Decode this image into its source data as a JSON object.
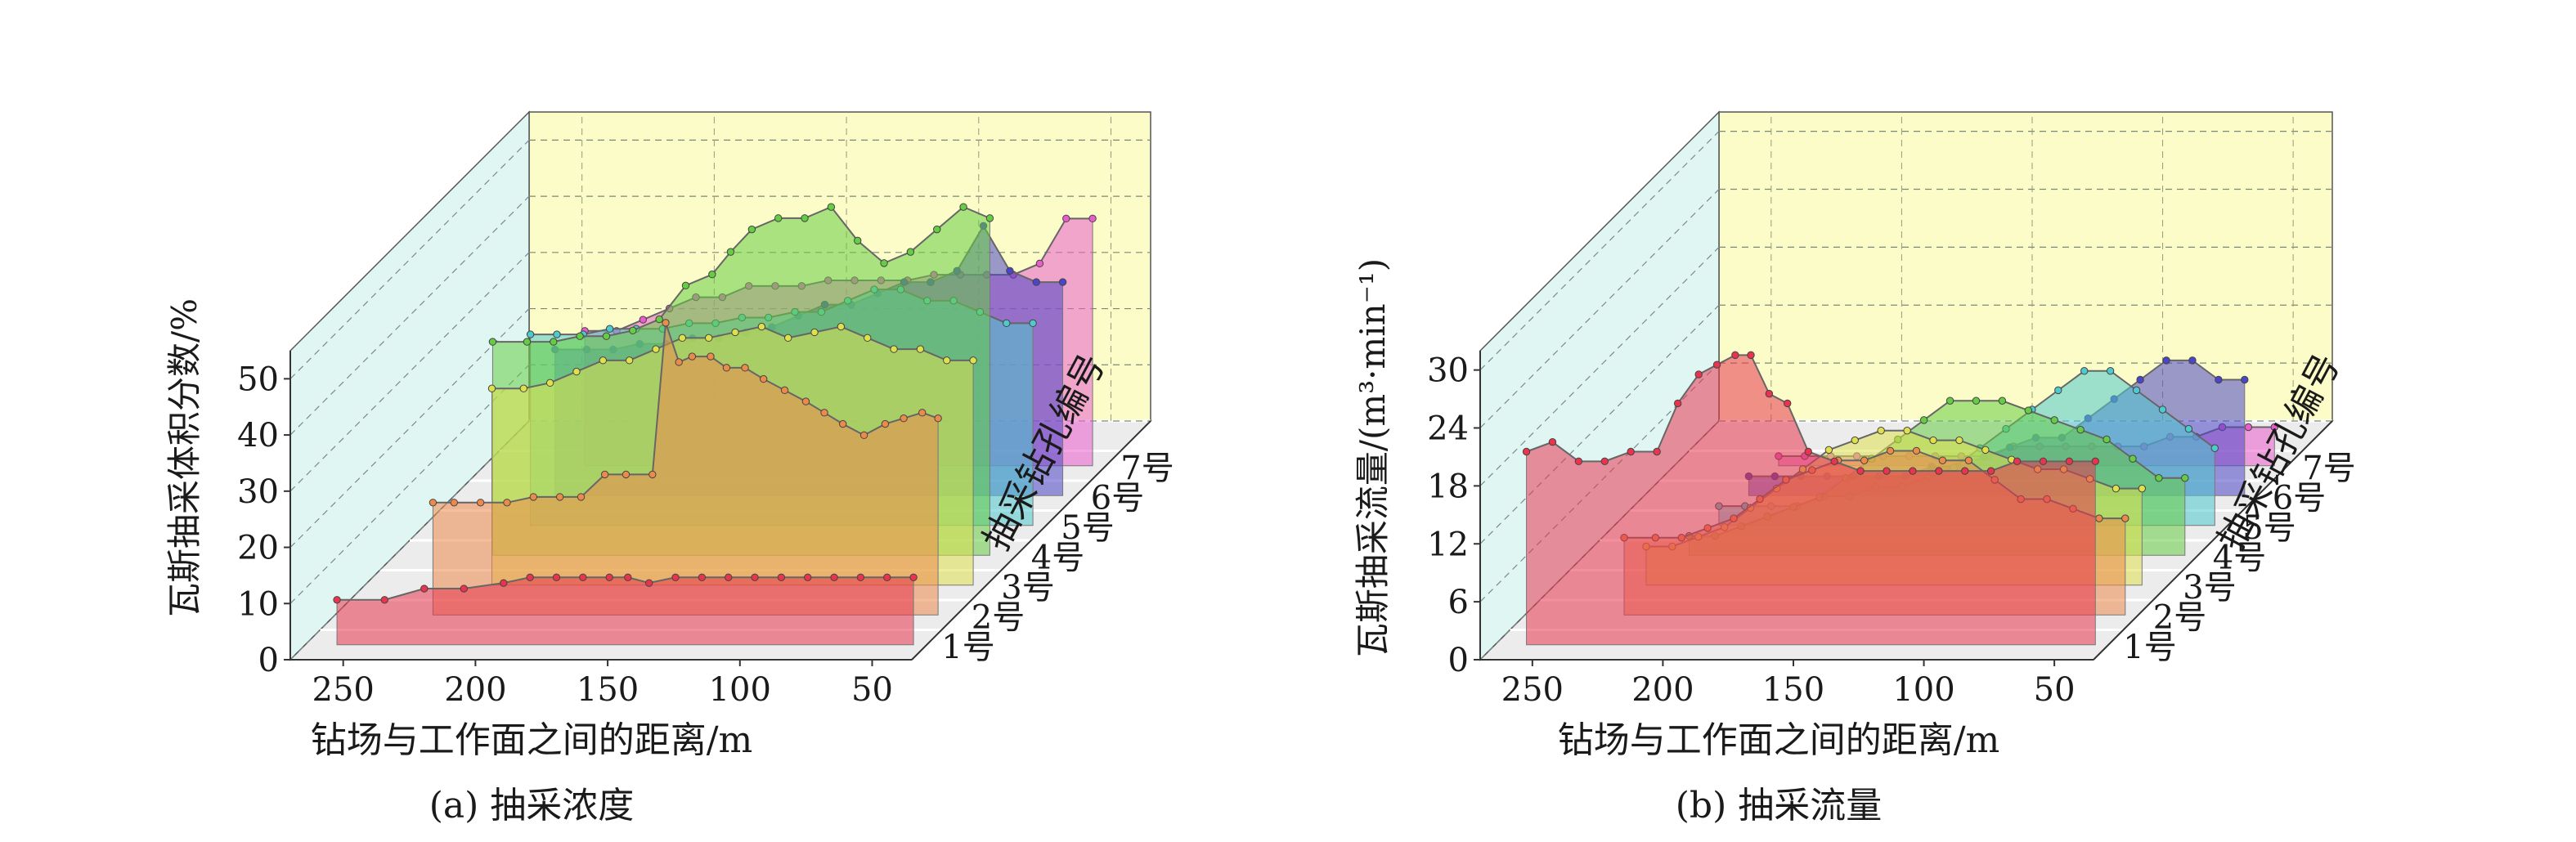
{
  "figure": {
    "panels": [
      "(a) 抽采浓度",
      "(b) 抽采流量"
    ]
  },
  "chart_data": [
    {
      "type": "area",
      "caption": "(a) 抽采浓度",
      "xlabel": "钻场与工作面之间的距离/m",
      "ylabel": "瓦斯抽采体积分数/%",
      "zlabel": "抽采钻孔编号",
      "x_ticks": [
        "250",
        "200",
        "150",
        "100",
        "50"
      ],
      "y_ticks": [
        "0",
        "10",
        "20",
        "30",
        "40",
        "50"
      ],
      "series_labels": [
        "1号",
        "2号",
        "3号",
        "4号",
        "5号",
        "6号",
        "7号"
      ],
      "xlim": [
        270,
        35
      ],
      "ylim": [
        0,
        55
      ],
      "series": [
        {
          "name": "1号",
          "color": "#e8344e",
          "x": [
            258,
            240,
            225,
            210,
            195,
            185,
            175,
            165,
            155,
            148,
            140,
            130,
            120,
            110,
            100,
            90,
            80,
            70,
            60,
            50,
            40
          ],
          "values": [
            8,
            8,
            10,
            10,
            11,
            12,
            12,
            12,
            12,
            12,
            11,
            12,
            12,
            12,
            12,
            12,
            12,
            12,
            12,
            12,
            12
          ]
        },
        {
          "name": "2号",
          "color": "#ec8a4c",
          "x": [
            233,
            225,
            215,
            205,
            195,
            185,
            177,
            168,
            160,
            150,
            145,
            140,
            135,
            128,
            122,
            115,
            108,
            100,
            92,
            85,
            78,
            70,
            62,
            55,
            48,
            42
          ],
          "values": [
            20,
            20,
            20,
            20,
            21,
            21,
            21,
            25,
            25,
            25,
            52,
            45,
            46,
            46,
            44,
            44,
            42,
            40,
            38,
            36,
            34,
            32,
            34,
            35,
            36,
            35
          ]
        },
        {
          "name": "3号",
          "color": "#dfe04e",
          "x": [
            222,
            210,
            200,
            190,
            180,
            170,
            160,
            150,
            140,
            130,
            120,
            110,
            100,
            90,
            80,
            70,
            60,
            50,
            40
          ],
          "values": [
            35,
            35,
            36,
            38,
            40,
            40,
            42,
            44,
            44,
            45,
            46,
            44,
            45,
            46,
            44,
            42,
            42,
            40,
            40
          ]
        },
        {
          "name": "4号",
          "color": "#66cc44",
          "x": [
            233,
            220,
            210,
            200,
            190,
            180,
            170,
            160,
            150,
            143,
            135,
            125,
            115,
            105,
            95,
            85,
            75,
            65,
            55,
            45
          ],
          "values": [
            38,
            38,
            38,
            39,
            39,
            40,
            42,
            48,
            50,
            54,
            58,
            60,
            60,
            62,
            56,
            52,
            54,
            58,
            62,
            60
          ]
        },
        {
          "name": "5号",
          "color": "#4ec9cd",
          "x": [
            230,
            220,
            210,
            200,
            190,
            180,
            170,
            160,
            150,
            140,
            130,
            120,
            110,
            100,
            90,
            80,
            70,
            60,
            50,
            40
          ],
          "values": [
            34,
            34,
            34,
            35,
            35,
            35,
            36,
            36,
            37,
            37,
            38,
            38,
            40,
            42,
            42,
            40,
            40,
            38,
            36,
            36
          ]
        },
        {
          "name": "6号",
          "color": "#4a46c6",
          "x": [
            232,
            220,
            210,
            200,
            190,
            180,
            170,
            160,
            150,
            140,
            130,
            120,
            110,
            100,
            90,
            80,
            70,
            60,
            50,
            40
          ],
          "values": [
            26,
            26,
            26,
            27,
            27,
            28,
            28,
            29,
            30,
            32,
            34,
            34,
            36,
            38,
            38,
            40,
            48,
            40,
            38,
            38
          ]
        },
        {
          "name": "7号",
          "color": "#ea5ccc",
          "x": [
            232,
            220,
            210,
            200,
            190,
            180,
            170,
            160,
            150,
            140,
            130,
            120,
            110,
            100,
            90,
            80,
            70,
            60,
            50,
            40
          ],
          "values": [
            24,
            24,
            26,
            28,
            30,
            30,
            32,
            32,
            32,
            33,
            33,
            33,
            33,
            34,
            34,
            34,
            34,
            36,
            44,
            44
          ]
        }
      ]
    },
    {
      "type": "area",
      "caption": "(b) 抽采流量",
      "xlabel": "钻场与工作面之间的距离/m",
      "ylabel": "瓦斯抽采流量/(m³·min⁻¹)",
      "zlabel": "抽采钻孔编号",
      "x_ticks": [
        "250",
        "200",
        "150",
        "100",
        "50"
      ],
      "y_ticks": [
        "0",
        "6",
        "12",
        "18",
        "24",
        "30"
      ],
      "series_labels": [
        "1号",
        "2号",
        "3号",
        "4号",
        "5号",
        "6号",
        "7号"
      ],
      "xlim": [
        270,
        35
      ],
      "ylim": [
        0,
        32
      ],
      "series": [
        {
          "name": "1号",
          "color": "#e8344e",
          "x": [
            258,
            248,
            238,
            228,
            218,
            208,
            200,
            192,
            185,
            178,
            172,
            165,
            158,
            150,
            140,
            130,
            120,
            110,
            100,
            90,
            80,
            70,
            60,
            50,
            40
          ],
          "values": [
            20,
            21,
            19,
            19,
            20,
            20,
            25,
            28,
            29,
            30,
            30,
            26,
            25,
            20,
            19,
            18,
            18,
            18,
            18,
            18,
            18,
            19,
            19,
            19,
            19
          ]
        },
        {
          "name": "2号",
          "color": "#ec8a4c",
          "x": [
            232,
            220,
            210,
            200,
            190,
            180,
            170,
            160,
            150,
            140,
            130,
            120,
            110,
            100,
            90,
            80,
            70,
            60,
            50,
            40
          ],
          "values": [
            8,
            8,
            8,
            9,
            10,
            12,
            14,
            15,
            16,
            16,
            17,
            17,
            16,
            16,
            14,
            12,
            12,
            11,
            10,
            10
          ]
        },
        {
          "name": "3号",
          "color": "#dfe04e",
          "x": [
            235,
            225,
            215,
            205,
            195,
            185,
            175,
            165,
            155,
            145,
            135,
            125,
            115,
            105,
            95,
            85,
            75,
            65,
            55,
            45
          ],
          "values": [
            4,
            4,
            5,
            6,
            8,
            10,
            12,
            14,
            15,
            16,
            16,
            15,
            15,
            14,
            13,
            12,
            12,
            11,
            10,
            10
          ]
        },
        {
          "name": "4号",
          "color": "#66cc44",
          "x": [
            230,
            220,
            210,
            200,
            190,
            180,
            170,
            160,
            150,
            140,
            130,
            120,
            110,
            100,
            90,
            80,
            70,
            60,
            50,
            40
          ],
          "values": [
            2,
            2,
            3,
            4,
            5,
            6,
            8,
            10,
            12,
            14,
            16,
            16,
            16,
            15,
            14,
            13,
            12,
            10,
            8,
            8
          ]
        },
        {
          "name": "5号",
          "color": "#4ec9cd",
          "x": [
            230,
            220,
            210,
            200,
            190,
            180,
            170,
            160,
            150,
            140,
            130,
            120,
            110,
            100,
            90,
            80,
            70,
            60,
            50,
            40
          ],
          "values": [
            2,
            2,
            2,
            2,
            3,
            3,
            4,
            4,
            5,
            6,
            8,
            10,
            12,
            14,
            16,
            16,
            14,
            12,
            10,
            8
          ]
        },
        {
          "name": "6号",
          "color": "#4a46c6",
          "x": [
            230,
            220,
            210,
            200,
            190,
            180,
            170,
            160,
            150,
            140,
            130,
            120,
            110,
            100,
            90,
            80,
            70,
            60,
            50,
            40
          ],
          "values": [
            2,
            2,
            2,
            2,
            2,
            2,
            2,
            3,
            3,
            4,
            5,
            6,
            6,
            8,
            10,
            12,
            14,
            14,
            12,
            12
          ]
        },
        {
          "name": "7号",
          "color": "#ea5ccc",
          "x": [
            230,
            220,
            210,
            200,
            190,
            180,
            170,
            160,
            150,
            140,
            130,
            120,
            110,
            100,
            90,
            80,
            70,
            60,
            50,
            40
          ],
          "values": [
            1,
            1,
            1,
            1,
            1,
            1,
            1,
            1,
            1,
            2,
            2,
            2,
            2,
            2,
            2,
            3,
            3,
            4,
            4,
            4
          ]
        }
      ]
    }
  ]
}
